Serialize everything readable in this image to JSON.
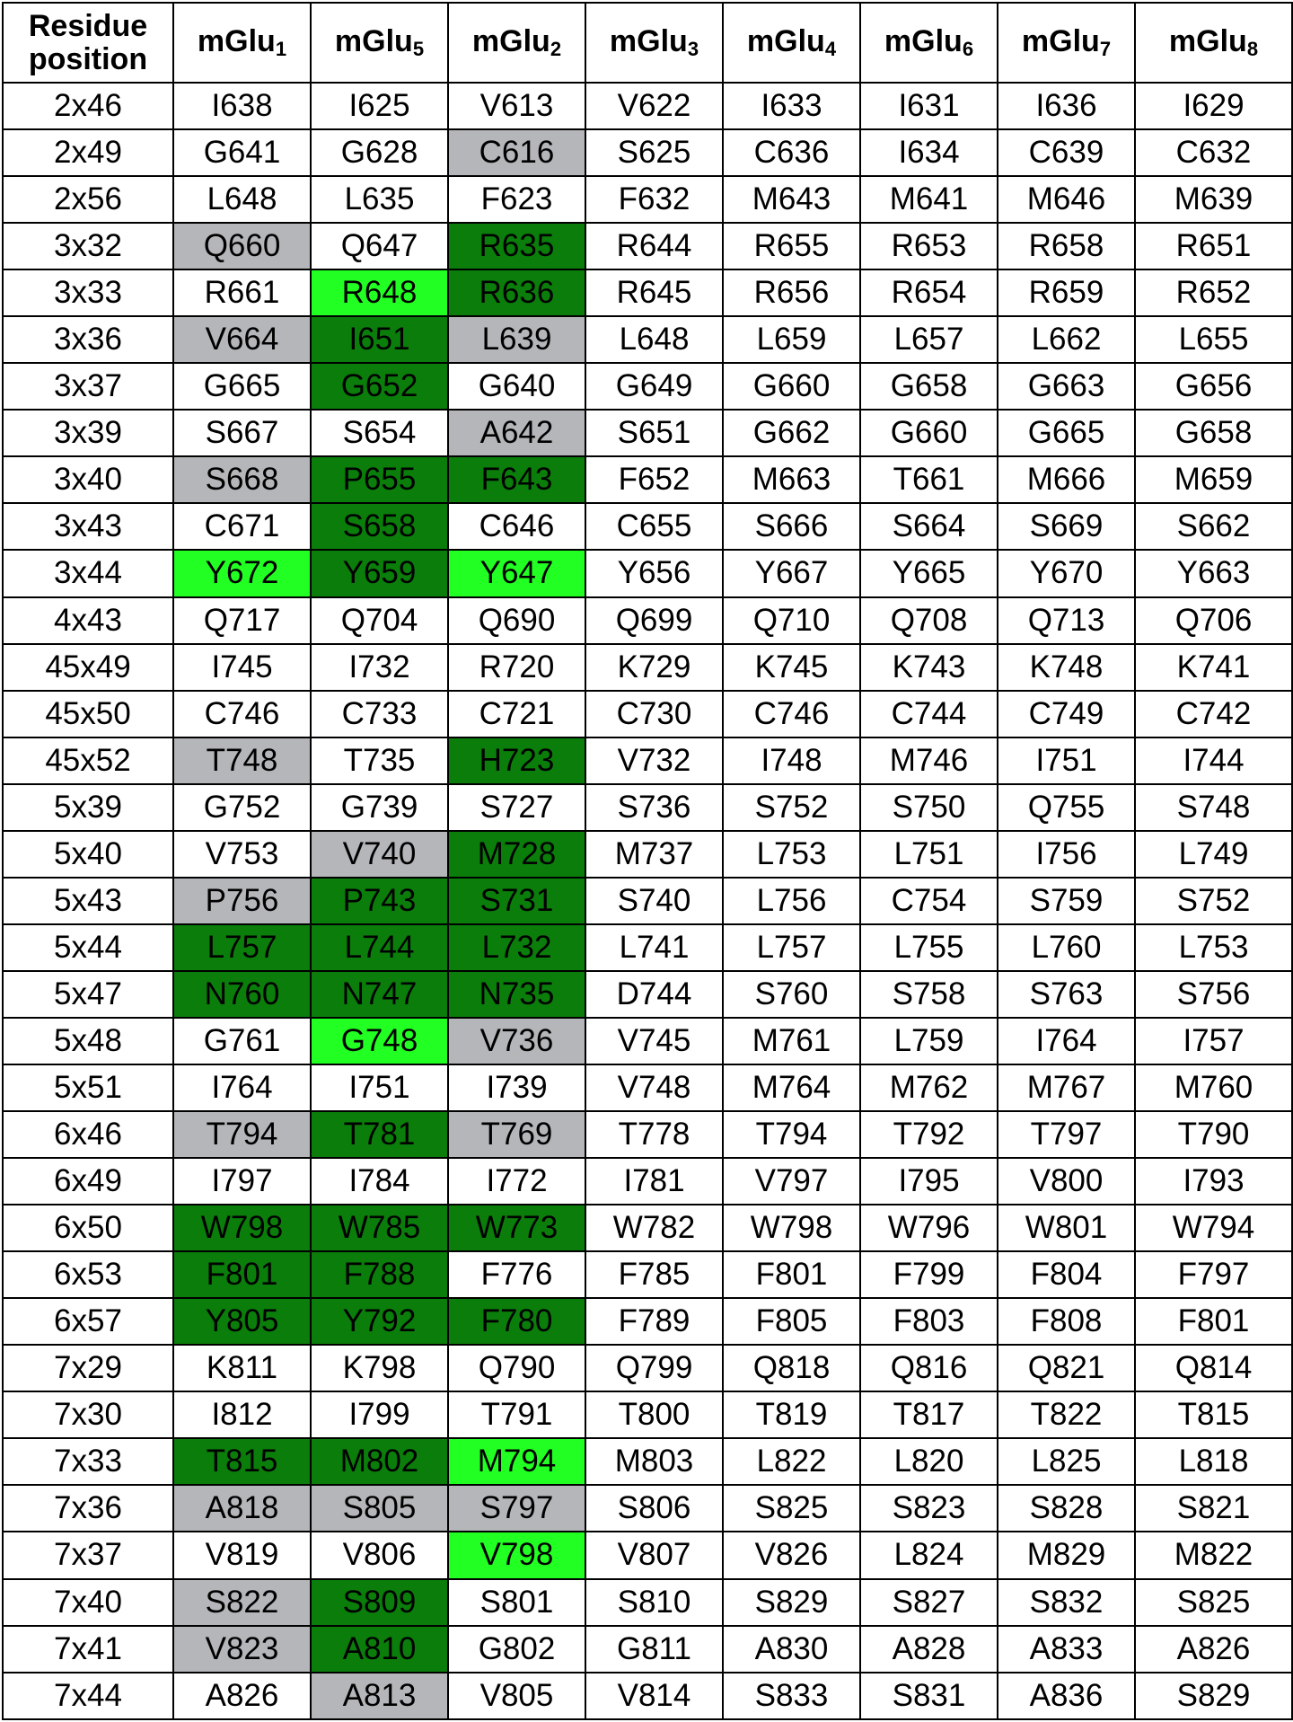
{
  "header": {
    "residue": "Residue position",
    "receptors": [
      {
        "name": "mGlu",
        "sub": "1"
      },
      {
        "name": "mGlu",
        "sub": "5"
      },
      {
        "name": "mGlu",
        "sub": "2"
      },
      {
        "name": "mGlu",
        "sub": "3"
      },
      {
        "name": "mGlu",
        "sub": "4"
      },
      {
        "name": "mGlu",
        "sub": "6"
      },
      {
        "name": "mGlu",
        "sub": "7"
      },
      {
        "name": "mGlu",
        "sub": "8"
      }
    ]
  },
  "highlight_colors": {
    "grey": "#b4b6b9",
    "dark_green": "#0a7d0a",
    "bright_green": "#22ff22"
  },
  "rows": [
    {
      "pos": "2x46",
      "cells": [
        "I638",
        "I625",
        "V613",
        "V622",
        "I633",
        "I631",
        "I636",
        "I629"
      ],
      "hl": [
        "",
        "",
        "",
        "",
        "",
        "",
        "",
        ""
      ]
    },
    {
      "pos": "2x49",
      "cells": [
        "G641",
        "G628",
        "C616",
        "S625",
        "C636",
        "I634",
        "C639",
        "C632"
      ],
      "hl": [
        "",
        "",
        "grey",
        "",
        "",
        "",
        "",
        ""
      ]
    },
    {
      "pos": "2x56",
      "cells": [
        "L648",
        "L635",
        "F623",
        "F632",
        "M643",
        "M641",
        "M646",
        "M639"
      ],
      "hl": [
        "",
        "",
        "",
        "",
        "",
        "",
        "",
        ""
      ]
    },
    {
      "pos": "3x32",
      "cells": [
        "Q660",
        "Q647",
        "R635",
        "R644",
        "R655",
        "R653",
        "R658",
        "R651"
      ],
      "hl": [
        "grey",
        "",
        "dark",
        "",
        "",
        "",
        "",
        ""
      ]
    },
    {
      "pos": "3x33",
      "cells": [
        "R661",
        "R648",
        "R636",
        "R645",
        "R656",
        "R654",
        "R659",
        "R652"
      ],
      "hl": [
        "",
        "bright",
        "dark",
        "",
        "",
        "",
        "",
        ""
      ]
    },
    {
      "pos": "3x36",
      "cells": [
        "V664",
        "I651",
        "L639",
        "L648",
        "L659",
        "L657",
        "L662",
        "L655"
      ],
      "hl": [
        "grey",
        "dark",
        "grey",
        "",
        "",
        "",
        "",
        ""
      ]
    },
    {
      "pos": "3x37",
      "cells": [
        "G665",
        "G652",
        "G640",
        "G649",
        "G660",
        "G658",
        "G663",
        "G656"
      ],
      "hl": [
        "",
        "dark",
        "",
        "",
        "",
        "",
        "",
        ""
      ]
    },
    {
      "pos": "3x39",
      "cells": [
        "S667",
        "S654",
        "A642",
        "S651",
        "G662",
        "G660",
        "G665",
        "G658"
      ],
      "hl": [
        "",
        "",
        "grey",
        "",
        "",
        "",
        "",
        ""
      ]
    },
    {
      "pos": "3x40",
      "cells": [
        "S668",
        "P655",
        "F643",
        "F652",
        "M663",
        "T661",
        "M666",
        "M659"
      ],
      "hl": [
        "grey",
        "dark",
        "dark",
        "",
        "",
        "",
        "",
        ""
      ]
    },
    {
      "pos": "3x43",
      "cells": [
        "C671",
        "S658",
        "C646",
        "C655",
        "S666",
        "S664",
        "S669",
        "S662"
      ],
      "hl": [
        "",
        "dark",
        "",
        "",
        "",
        "",
        "",
        ""
      ]
    },
    {
      "pos": "3x44",
      "cells": [
        "Y672",
        "Y659",
        "Y647",
        "Y656",
        "Y667",
        "Y665",
        "Y670",
        "Y663"
      ],
      "hl": [
        "bright",
        "dark",
        "bright",
        "",
        "",
        "",
        "",
        ""
      ]
    },
    {
      "pos": "4x43",
      "cells": [
        "Q717",
        "Q704",
        "Q690",
        "Q699",
        "Q710",
        "Q708",
        "Q713",
        "Q706"
      ],
      "hl": [
        "",
        "",
        "",
        "",
        "",
        "",
        "",
        ""
      ]
    },
    {
      "pos": "45x49",
      "cells": [
        "I745",
        "I732",
        "R720",
        "K729",
        "K745",
        "K743",
        "K748",
        "K741"
      ],
      "hl": [
        "",
        "",
        "",
        "",
        "",
        "",
        "",
        ""
      ]
    },
    {
      "pos": "45x50",
      "cells": [
        "C746",
        "C733",
        "C721",
        "C730",
        "C746",
        "C744",
        "C749",
        "C742"
      ],
      "hl": [
        "",
        "",
        "",
        "",
        "",
        "",
        "",
        ""
      ]
    },
    {
      "pos": "45x52",
      "cells": [
        "T748",
        "T735",
        "H723",
        "V732",
        "I748",
        "M746",
        "I751",
        "I744"
      ],
      "hl": [
        "grey",
        "",
        "dark",
        "",
        "",
        "",
        "",
        ""
      ]
    },
    {
      "pos": "5x39",
      "cells": [
        "G752",
        "G739",
        "S727",
        "S736",
        "S752",
        "S750",
        "Q755",
        "S748"
      ],
      "hl": [
        "",
        "",
        "",
        "",
        "",
        "",
        "",
        ""
      ]
    },
    {
      "pos": "5x40",
      "cells": [
        "V753",
        "V740",
        "M728",
        "M737",
        "L753",
        "L751",
        "I756",
        "L749"
      ],
      "hl": [
        "",
        "grey",
        "dark",
        "",
        "",
        "",
        "",
        ""
      ]
    },
    {
      "pos": "5x43",
      "cells": [
        "P756",
        "P743",
        "S731",
        "S740",
        "L756",
        "C754",
        "S759",
        "S752"
      ],
      "hl": [
        "grey",
        "dark",
        "dark",
        "",
        "",
        "",
        "",
        ""
      ]
    },
    {
      "pos": "5x44",
      "cells": [
        "L757",
        "L744",
        "L732",
        "L741",
        "L757",
        "L755",
        "L760",
        "L753"
      ],
      "hl": [
        "dark",
        "dark",
        "dark",
        "",
        "",
        "",
        "",
        ""
      ]
    },
    {
      "pos": "5x47",
      "cells": [
        "N760",
        "N747",
        "N735",
        "D744",
        "S760",
        "S758",
        "S763",
        "S756"
      ],
      "hl": [
        "dark",
        "dark",
        "dark",
        "",
        "",
        "",
        "",
        ""
      ]
    },
    {
      "pos": "5x48",
      "cells": [
        "G761",
        "G748",
        "V736",
        "V745",
        "M761",
        "L759",
        "I764",
        "I757"
      ],
      "hl": [
        "",
        "bright",
        "grey",
        "",
        "",
        "",
        "",
        ""
      ]
    },
    {
      "pos": "5x51",
      "cells": [
        "I764",
        "I751",
        "I739",
        "V748",
        "M764",
        "M762",
        "M767",
        "M760"
      ],
      "hl": [
        "",
        "",
        "",
        "",
        "",
        "",
        "",
        ""
      ]
    },
    {
      "pos": "6x46",
      "cells": [
        "T794",
        "T781",
        "T769",
        "T778",
        "T794",
        "T792",
        "T797",
        "T790"
      ],
      "hl": [
        "grey",
        "dark",
        "grey",
        "",
        "",
        "",
        "",
        ""
      ]
    },
    {
      "pos": "6x49",
      "cells": [
        "I797",
        "I784",
        "I772",
        "I781",
        "V797",
        "I795",
        "V800",
        "I793"
      ],
      "hl": [
        "",
        "",
        "",
        "",
        "",
        "",
        "",
        ""
      ]
    },
    {
      "pos": "6x50",
      "cells": [
        "W798",
        "W785",
        "W773",
        "W782",
        "W798",
        "W796",
        "W801",
        "W794"
      ],
      "hl": [
        "dark",
        "dark",
        "dark",
        "",
        "",
        "",
        "",
        ""
      ]
    },
    {
      "pos": "6x53",
      "cells": [
        "F801",
        "F788",
        "F776",
        "F785",
        "F801",
        "F799",
        "F804",
        "F797"
      ],
      "hl": [
        "dark",
        "dark",
        "",
        "",
        "",
        "",
        "",
        ""
      ]
    },
    {
      "pos": "6x57",
      "cells": [
        "Y805",
        "Y792",
        "F780",
        "F789",
        "F805",
        "F803",
        "F808",
        "F801"
      ],
      "hl": [
        "dark",
        "dark",
        "dark",
        "",
        "",
        "",
        "",
        ""
      ]
    },
    {
      "pos": "7x29",
      "cells": [
        "K811",
        "K798",
        "Q790",
        "Q799",
        "Q818",
        "Q816",
        "Q821",
        "Q814"
      ],
      "hl": [
        "",
        "",
        "",
        "",
        "",
        "",
        "",
        ""
      ]
    },
    {
      "pos": "7x30",
      "cells": [
        "I812",
        "I799",
        "T791",
        "T800",
        "T819",
        "T817",
        "T822",
        "T815"
      ],
      "hl": [
        "",
        "",
        "",
        "",
        "",
        "",
        "",
        ""
      ]
    },
    {
      "pos": "7x33",
      "cells": [
        "T815",
        "M802",
        "M794",
        "M803",
        "L822",
        "L820",
        "L825",
        "L818"
      ],
      "hl": [
        "dark",
        "dark",
        "bright",
        "",
        "",
        "",
        "",
        ""
      ]
    },
    {
      "pos": "7x36",
      "cells": [
        "A818",
        "S805",
        "S797",
        "S806",
        "S825",
        "S823",
        "S828",
        "S821"
      ],
      "hl": [
        "grey",
        "grey",
        "grey",
        "",
        "",
        "",
        "",
        ""
      ]
    },
    {
      "pos": "7x37",
      "cells": [
        "V819",
        "V806",
        "V798",
        "V807",
        "V826",
        "L824",
        "M829",
        "M822"
      ],
      "hl": [
        "",
        "",
        "bright",
        "",
        "",
        "",
        "",
        ""
      ]
    },
    {
      "pos": "7x40",
      "cells": [
        "S822",
        "S809",
        "S801",
        "S810",
        "S829",
        "S827",
        "S832",
        "S825"
      ],
      "hl": [
        "grey",
        "dark",
        "",
        "",
        "",
        "",
        "",
        ""
      ]
    },
    {
      "pos": "7x41",
      "cells": [
        "V823",
        "A810",
        "G802",
        "G811",
        "A830",
        "A828",
        "A833",
        "A826"
      ],
      "hl": [
        "grey",
        "dark",
        "",
        "",
        "",
        "",
        "",
        ""
      ]
    },
    {
      "pos": "7x44",
      "cells": [
        "A826",
        "A813",
        "V805",
        "V814",
        "S833",
        "S831",
        "A836",
        "S829"
      ],
      "hl": [
        "",
        "grey",
        "",
        "",
        "",
        "",
        "",
        ""
      ]
    }
  ]
}
